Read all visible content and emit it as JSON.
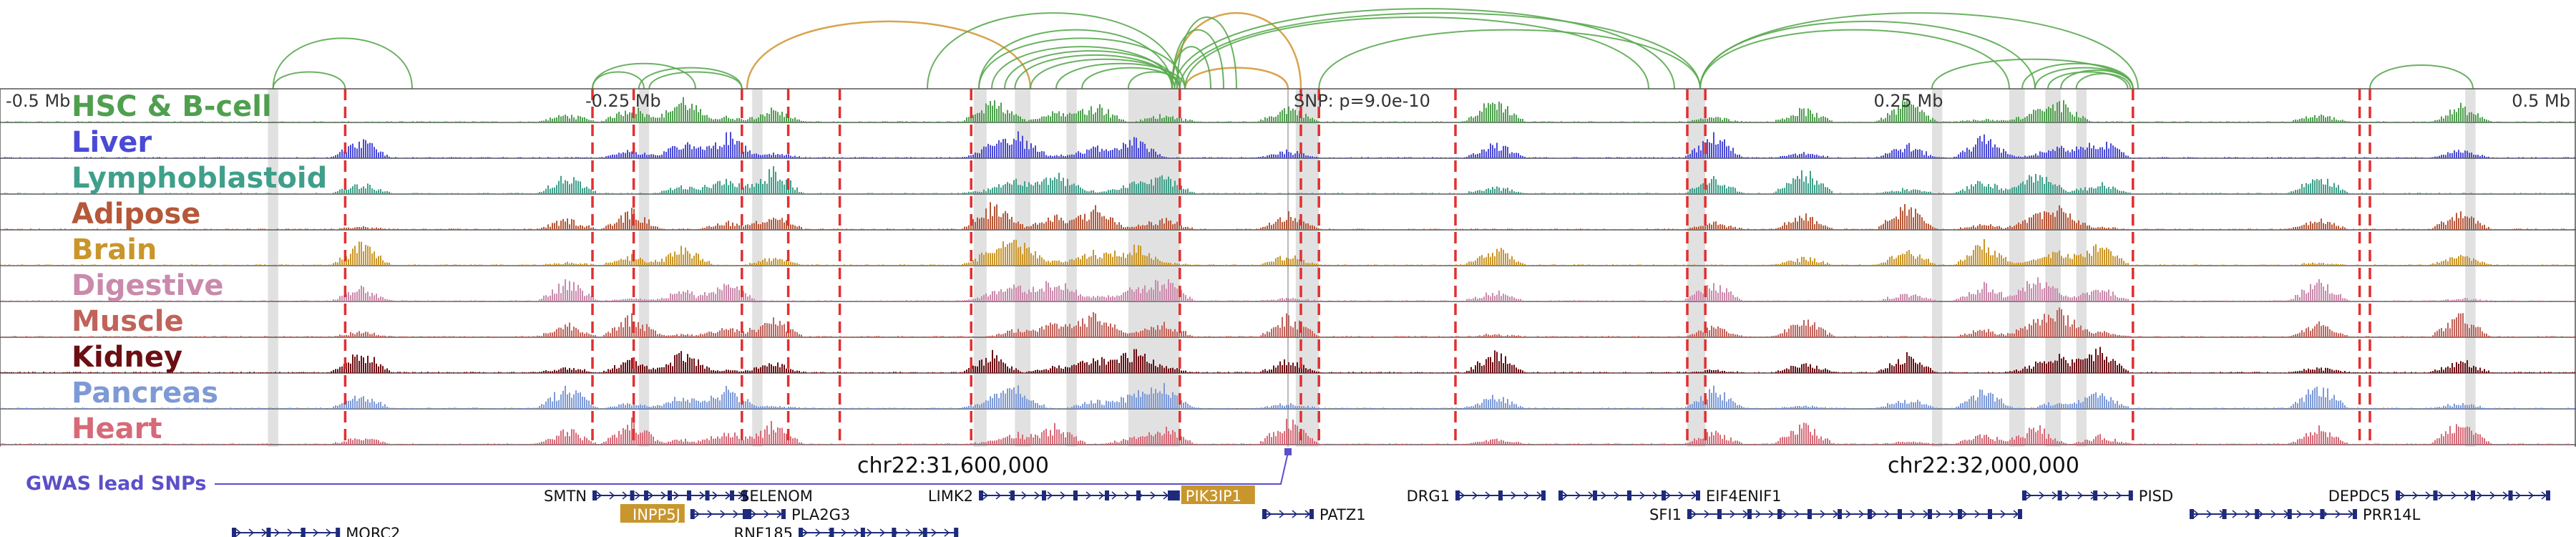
{
  "axis": {
    "ticks": [
      {
        "label": "-0.5 Mb",
        "pos": 0.0
      },
      {
        "label": "-0.25 Mb",
        "pos": 0.25
      },
      {
        "label": "0.25 Mb",
        "pos": 0.75
      },
      {
        "label": "0.5 Mb",
        "pos": 1.0
      }
    ],
    "snp_label": "SNP: p=9.0e-10",
    "snp_pos": 0.5,
    "coordinate_labels": [
      {
        "label": "chr22:31,600,000",
        "pos": 0.37
      },
      {
        "label": "chr22:32,000,000",
        "pos": 0.77
      }
    ]
  },
  "colors": {
    "loop": "#5aaa50",
    "loop_highlight": "#d49a3c",
    "boundary": "#e03030",
    "highlight_band": "#dcdcdc",
    "gene": "#1f2a7a",
    "gwas": "#5b4fc9",
    "gene_highlight": "#c8962c"
  },
  "tracks": [
    {
      "name": "HSC & B-cell",
      "color": "#4f9f4f"
    },
    {
      "name": "Liver",
      "color": "#4a4ad6"
    },
    {
      "name": "Lymphoblastoid",
      "color": "#3f9f8a"
    },
    {
      "name": "Adipose",
      "color": "#b5583a"
    },
    {
      "name": "Brain",
      "color": "#c9962a"
    },
    {
      "name": "Digestive",
      "color": "#c98aac"
    },
    {
      "name": "Muscle",
      "color": "#c0635a"
    },
    {
      "name": "Kidney",
      "color": "#6b0f14"
    },
    {
      "name": "Pancreas",
      "color": "#7e9ad6"
    },
    {
      "name": "Heart",
      "color": "#d66a78"
    }
  ],
  "boundaries": [
    0.134,
    0.23,
    0.246,
    0.288,
    0.306,
    0.326,
    0.377,
    0.458,
    0.505,
    0.512,
    0.565,
    0.655,
    0.662,
    0.828,
    0.916,
    0.92
  ],
  "highlight_bands": [
    [
      0.104,
      0.108
    ],
    [
      0.248,
      0.252
    ],
    [
      0.292,
      0.296
    ],
    [
      0.378,
      0.383
    ],
    [
      0.394,
      0.4
    ],
    [
      0.414,
      0.418
    ],
    [
      0.438,
      0.458
    ],
    [
      0.503,
      0.512
    ],
    [
      0.655,
      0.662
    ],
    [
      0.75,
      0.754
    ],
    [
      0.78,
      0.786
    ],
    [
      0.794,
      0.8
    ],
    [
      0.806,
      0.81
    ],
    [
      0.957,
      0.961
    ]
  ],
  "loops": [
    {
      "a": 0.106,
      "b": 0.16,
      "h": 0.6,
      "hl": false
    },
    {
      "a": 0.106,
      "b": 0.134,
      "h": 0.2,
      "hl": false
    },
    {
      "a": 0.23,
      "b": 0.25,
      "h": 0.2,
      "hl": false
    },
    {
      "a": 0.23,
      "b": 0.27,
      "h": 0.3,
      "hl": false
    },
    {
      "a": 0.248,
      "b": 0.288,
      "h": 0.25,
      "hl": false
    },
    {
      "a": 0.252,
      "b": 0.288,
      "h": 0.2,
      "hl": false
    },
    {
      "a": 0.29,
      "b": 0.4,
      "h": 0.8,
      "hl": true
    },
    {
      "a": 0.38,
      "b": 0.455,
      "h": 0.7,
      "hl": false
    },
    {
      "a": 0.38,
      "b": 0.46,
      "h": 0.6,
      "hl": false
    },
    {
      "a": 0.385,
      "b": 0.455,
      "h": 0.5,
      "hl": false
    },
    {
      "a": 0.39,
      "b": 0.457,
      "h": 0.45,
      "hl": false
    },
    {
      "a": 0.394,
      "b": 0.456,
      "h": 0.4,
      "hl": false
    },
    {
      "a": 0.4,
      "b": 0.458,
      "h": 0.35,
      "hl": false
    },
    {
      "a": 0.41,
      "b": 0.46,
      "h": 0.3,
      "hl": false
    },
    {
      "a": 0.42,
      "b": 0.458,
      "h": 0.25,
      "hl": false
    },
    {
      "a": 0.438,
      "b": 0.458,
      "h": 0.2,
      "hl": false
    },
    {
      "a": 0.455,
      "b": 0.505,
      "h": 0.9,
      "hl": true
    },
    {
      "a": 0.46,
      "b": 0.5,
      "h": 0.25,
      "hl": true
    },
    {
      "a": 0.455,
      "b": 0.47,
      "h": 0.5,
      "hl": false
    },
    {
      "a": 0.455,
      "b": 0.475,
      "h": 0.7,
      "hl": false
    },
    {
      "a": 0.457,
      "b": 0.48,
      "h": 0.85,
      "hl": false
    },
    {
      "a": 0.456,
      "b": 0.65,
      "h": 0.95,
      "hl": false
    },
    {
      "a": 0.458,
      "b": 0.66,
      "h": 0.9,
      "hl": false
    },
    {
      "a": 0.46,
      "b": 0.64,
      "h": 0.85,
      "hl": false
    },
    {
      "a": 0.512,
      "b": 0.66,
      "h": 0.7,
      "hl": false
    },
    {
      "a": 0.36,
      "b": 0.458,
      "h": 0.9,
      "hl": false
    },
    {
      "a": 0.66,
      "b": 0.83,
      "h": 0.9,
      "hl": false
    },
    {
      "a": 0.66,
      "b": 0.78,
      "h": 0.7,
      "hl": false
    },
    {
      "a": 0.66,
      "b": 0.79,
      "h": 0.8,
      "hl": false
    },
    {
      "a": 0.785,
      "b": 0.828,
      "h": 0.3,
      "hl": false
    },
    {
      "a": 0.79,
      "b": 0.828,
      "h": 0.25,
      "hl": false
    },
    {
      "a": 0.795,
      "b": 0.826,
      "h": 0.2,
      "hl": false
    },
    {
      "a": 0.8,
      "b": 0.828,
      "h": 0.22,
      "hl": false
    },
    {
      "a": 0.806,
      "b": 0.827,
      "h": 0.18,
      "hl": false
    },
    {
      "a": 0.75,
      "b": 0.828,
      "h": 0.35,
      "hl": false
    },
    {
      "a": 0.92,
      "b": 0.96,
      "h": 0.28,
      "hl": false
    }
  ],
  "gwas": {
    "label": "GWAS lead SNPs",
    "snp_pos": 0.5
  },
  "genes": [
    {
      "name": "SMTN",
      "start": 0.23,
      "end": 0.29,
      "row": 0,
      "label_side": "left",
      "highlight": false
    },
    {
      "name": "SELENOM",
      "start": 0.25,
      "end": 0.285,
      "row": 0,
      "label_side": "right",
      "highlight": false
    },
    {
      "name": "INPP5J",
      "start": 0.268,
      "end": 0.29,
      "row": 1,
      "label_side": "left",
      "highlight": true
    },
    {
      "name": "PLA2G3",
      "start": 0.29,
      "end": 0.305,
      "row": 1,
      "label_side": "right",
      "highlight": false
    },
    {
      "name": "RNF185",
      "start": 0.31,
      "end": 0.372,
      "row": 2,
      "label_side": "left",
      "highlight": false
    },
    {
      "name": "MORC2",
      "start": 0.09,
      "end": 0.132,
      "row": 2,
      "label_side": "right",
      "highlight": false
    },
    {
      "name": "LIMK2",
      "start": 0.38,
      "end": 0.455,
      "row": 0,
      "label_side": "left",
      "highlight": false
    },
    {
      "name": "PIK3IP1",
      "start": 0.455,
      "end": 0.458,
      "row": 0,
      "label_side": "right",
      "highlight": true
    },
    {
      "name": "PATZ1",
      "start": 0.49,
      "end": 0.51,
      "row": 1,
      "label_side": "right",
      "highlight": false
    },
    {
      "name": "DRG1",
      "start": 0.565,
      "end": 0.6,
      "row": 0,
      "label_side": "left",
      "highlight": false
    },
    {
      "name": "EIF4ENIF1",
      "start": 0.605,
      "end": 0.66,
      "row": 0,
      "label_side": "right",
      "highlight": false
    },
    {
      "name": "SFI1",
      "start": 0.655,
      "end": 0.785,
      "row": 1,
      "label_side": "left",
      "highlight": false
    },
    {
      "name": "PISD",
      "start": 0.785,
      "end": 0.828,
      "row": 0,
      "label_side": "right",
      "highlight": false
    },
    {
      "name": "DEPDC5",
      "start": 0.93,
      "end": 0.99,
      "row": 0,
      "label_side": "left",
      "highlight": false
    },
    {
      "name": "PRR14L",
      "start": 0.85,
      "end": 0.915,
      "row": 1,
      "label_side": "right",
      "highlight": false
    }
  ]
}
